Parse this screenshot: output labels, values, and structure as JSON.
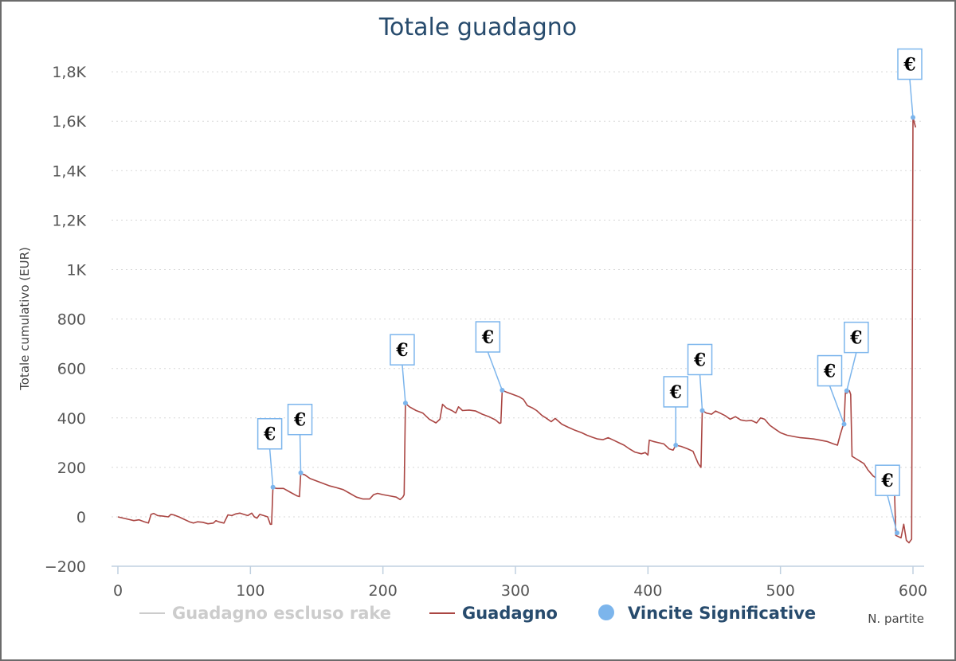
{
  "chart_data": {
    "type": "line",
    "title": "Totale guadagno",
    "ylabel": "Totale cumulativo (EUR)",
    "xlabel": "N. partite",
    "xlim": [
      -5,
      605
    ],
    "ylim": [
      -200,
      1800
    ],
    "x_ticks": [
      0,
      100,
      200,
      300,
      400,
      500,
      600
    ],
    "y_ticks": [
      -200,
      0,
      200,
      400,
      600,
      800,
      1000,
      1200,
      1400,
      1600,
      1800
    ],
    "y_tick_labels": [
      "−200",
      "0",
      "200",
      "400",
      "600",
      "800",
      "1K",
      "1,2K",
      "1,4K",
      "1,6K",
      "1,8K"
    ],
    "grid": "horizontal dotted",
    "legend_position": "bottom",
    "legend": [
      {
        "name": "Guadagno escluso rake",
        "color": "#cccccc",
        "symbol": "line",
        "state": "hidden"
      },
      {
        "name": "Guadagno",
        "color": "#aa4643",
        "symbol": "line"
      },
      {
        "name": "Vincite Significative",
        "color": "#7cb5ec",
        "symbol": "circle"
      }
    ],
    "series": [
      {
        "name": "Guadagno",
        "color": "#aa4643",
        "points": [
          [
            0,
            0
          ],
          [
            4,
            -5
          ],
          [
            8,
            -10
          ],
          [
            12,
            -15
          ],
          [
            16,
            -12
          ],
          [
            20,
            -20
          ],
          [
            23,
            -25
          ],
          [
            25,
            10
          ],
          [
            27,
            14
          ],
          [
            30,
            5
          ],
          [
            34,
            3
          ],
          [
            38,
            0
          ],
          [
            40,
            10
          ],
          [
            42,
            8
          ],
          [
            46,
            0
          ],
          [
            50,
            -10
          ],
          [
            54,
            -20
          ],
          [
            57,
            -25
          ],
          [
            60,
            -20
          ],
          [
            64,
            -22
          ],
          [
            68,
            -28
          ],
          [
            72,
            -25
          ],
          [
            74,
            -15
          ],
          [
            76,
            -20
          ],
          [
            80,
            -25
          ],
          [
            83,
            8
          ],
          [
            86,
            5
          ],
          [
            89,
            12
          ],
          [
            92,
            15
          ],
          [
            95,
            10
          ],
          [
            98,
            5
          ],
          [
            101,
            15
          ],
          [
            103,
            0
          ],
          [
            105,
            -5
          ],
          [
            107,
            10
          ],
          [
            110,
            5
          ],
          [
            113,
            0
          ],
          [
            115,
            -30
          ],
          [
            116,
            -30
          ],
          [
            117,
            118
          ],
          [
            120,
            115
          ],
          [
            125,
            115
          ],
          [
            130,
            100
          ],
          [
            135,
            85
          ],
          [
            137,
            82
          ],
          [
            138,
            175
          ],
          [
            141,
            170
          ],
          [
            145,
            155
          ],
          [
            150,
            145
          ],
          [
            155,
            135
          ],
          [
            160,
            125
          ],
          [
            165,
            118
          ],
          [
            170,
            110
          ],
          [
            175,
            95
          ],
          [
            180,
            80
          ],
          [
            185,
            72
          ],
          [
            190,
            72
          ],
          [
            193,
            90
          ],
          [
            196,
            95
          ],
          [
            200,
            90
          ],
          [
            205,
            85
          ],
          [
            210,
            80
          ],
          [
            213,
            70
          ],
          [
            215,
            80
          ],
          [
            216,
            90
          ],
          [
            217,
            460
          ],
          [
            220,
            445
          ],
          [
            225,
            430
          ],
          [
            230,
            420
          ],
          [
            235,
            395
          ],
          [
            240,
            380
          ],
          [
            243,
            395
          ],
          [
            245,
            455
          ],
          [
            248,
            440
          ],
          [
            252,
            430
          ],
          [
            255,
            420
          ],
          [
            257,
            445
          ],
          [
            260,
            430
          ],
          [
            265,
            432
          ],
          [
            270,
            428
          ],
          [
            275,
            415
          ],
          [
            280,
            405
          ],
          [
            285,
            392
          ],
          [
            288,
            378
          ],
          [
            289,
            380
          ],
          [
            290,
            512
          ],
          [
            293,
            505
          ],
          [
            298,
            495
          ],
          [
            303,
            485
          ],
          [
            306,
            475
          ],
          [
            309,
            450
          ],
          [
            313,
            440
          ],
          [
            316,
            430
          ],
          [
            320,
            410
          ],
          [
            323,
            400
          ],
          [
            327,
            385
          ],
          [
            330,
            398
          ],
          [
            335,
            375
          ],
          [
            340,
            362
          ],
          [
            345,
            350
          ],
          [
            350,
            340
          ],
          [
            354,
            330
          ],
          [
            358,
            322
          ],
          [
            362,
            315
          ],
          [
            366,
            312
          ],
          [
            370,
            320
          ],
          [
            374,
            310
          ],
          [
            378,
            300
          ],
          [
            382,
            290
          ],
          [
            386,
            275
          ],
          [
            390,
            262
          ],
          [
            395,
            255
          ],
          [
            398,
            260
          ],
          [
            400,
            250
          ],
          [
            401,
            310
          ],
          [
            404,
            305
          ],
          [
            408,
            300
          ],
          [
            412,
            295
          ],
          [
            416,
            275
          ],
          [
            419,
            270
          ],
          [
            421,
            290
          ],
          [
            425,
            285
          ],
          [
            430,
            275
          ],
          [
            434,
            265
          ],
          [
            436,
            240
          ],
          [
            438,
            215
          ],
          [
            440,
            200
          ],
          [
            441,
            430
          ],
          [
            444,
            420
          ],
          [
            448,
            415
          ],
          [
            451,
            428
          ],
          [
            455,
            418
          ],
          [
            458,
            410
          ],
          [
            462,
            395
          ],
          [
            466,
            405
          ],
          [
            470,
            392
          ],
          [
            474,
            388
          ],
          [
            478,
            390
          ],
          [
            482,
            380
          ],
          [
            485,
            400
          ],
          [
            488,
            395
          ],
          [
            492,
            370
          ],
          [
            496,
            355
          ],
          [
            500,
            340
          ],
          [
            505,
            330
          ],
          [
            510,
            325
          ],
          [
            515,
            320
          ],
          [
            520,
            318
          ],
          [
            525,
            315
          ],
          [
            530,
            310
          ],
          [
            535,
            305
          ],
          [
            540,
            295
          ],
          [
            543,
            290
          ],
          [
            545,
            330
          ],
          [
            547,
            365
          ],
          [
            548,
            375
          ],
          [
            549,
            505
          ],
          [
            550,
            500
          ],
          [
            552,
            510
          ],
          [
            553,
            495
          ],
          [
            554,
            245
          ],
          [
            557,
            235
          ],
          [
            560,
            225
          ],
          [
            563,
            215
          ],
          [
            566,
            190
          ],
          [
            570,
            165
          ],
          [
            573,
            155
          ],
          [
            575,
            140
          ],
          [
            577,
            190
          ],
          [
            579,
            155
          ],
          [
            581,
            175
          ],
          [
            583,
            160
          ],
          [
            585,
            150
          ],
          [
            586,
            120
          ],
          [
            587,
            -75
          ],
          [
            589,
            -80
          ],
          [
            591,
            -85
          ],
          [
            593,
            -30
          ],
          [
            595,
            -95
          ],
          [
            597,
            -105
          ],
          [
            599,
            -90
          ],
          [
            600,
            1615
          ],
          [
            602,
            1575
          ]
        ]
      }
    ],
    "markers": [
      {
        "series": "Vincite Significative",
        "label": "€",
        "x": 117,
        "y": 120
      },
      {
        "series": "Vincite Significative",
        "label": "€",
        "x": 138,
        "y": 178
      },
      {
        "series": "Vincite Significative",
        "label": "€",
        "x": 217,
        "y": 460
      },
      {
        "series": "Vincite Significative",
        "label": "€",
        "x": 290,
        "y": 512
      },
      {
        "series": "Vincite Significative",
        "label": "€",
        "x": 421,
        "y": 290
      },
      {
        "series": "Vincite Significative",
        "label": "€",
        "x": 441,
        "y": 430
      },
      {
        "series": "Vincite Significative",
        "label": "€",
        "x": 548,
        "y": 375
      },
      {
        "series": "Vincite Significative",
        "label": "€",
        "x": 550,
        "y": 510
      },
      {
        "series": "Vincite Significative",
        "label": "€",
        "x": 588,
        "y": -65
      },
      {
        "series": "Vincite Significative",
        "label": "€",
        "x": 600,
        "y": 1615
      }
    ]
  },
  "colors": {
    "title": "#274b6d",
    "grid": "#d8d8d8",
    "axis": "#c0d0e0",
    "marker_fill": "#7cb5ec",
    "marker_box_border": "#7cb5ec"
  }
}
